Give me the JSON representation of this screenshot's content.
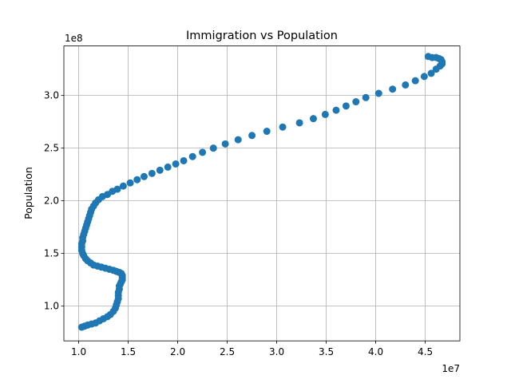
{
  "chart_data": {
    "type": "scatter",
    "title": "Immigration vs Population",
    "xlabel": "",
    "ylabel": "Population",
    "x_offset_label": "1e7",
    "y_offset_label": "1e8",
    "xlim": [
      0.85,
      4.85
    ],
    "ylim": [
      0.67,
      3.47
    ],
    "x_ticks": [
      1.0,
      1.5,
      2.0,
      2.5,
      3.0,
      3.5,
      4.0,
      4.5
    ],
    "x_tick_labels": [
      "1.0",
      "1.5",
      "2.0",
      "2.5",
      "3.0",
      "3.5",
      "4.0",
      "4.5"
    ],
    "y_ticks": [
      1.0,
      1.5,
      2.0,
      2.5,
      3.0
    ],
    "y_tick_labels": [
      "1.0",
      "1.5",
      "2.0",
      "2.5",
      "3.0"
    ],
    "grid": true,
    "color": "#1f77b4",
    "series": [
      {
        "x": [
          1.03,
          1.06,
          1.09,
          1.13,
          1.17,
          1.21,
          1.25,
          1.29,
          1.32,
          1.35,
          1.37,
          1.38,
          1.39,
          1.4,
          1.4,
          1.4,
          1.41,
          1.41,
          1.42,
          1.43,
          1.44,
          1.44,
          1.44,
          1.43,
          1.41,
          1.38,
          1.35,
          1.31,
          1.27,
          1.23,
          1.19,
          1.15,
          1.12,
          1.09,
          1.07,
          1.05,
          1.04,
          1.03,
          1.03,
          1.03,
          1.04,
          1.04,
          1.05,
          1.06,
          1.07,
          1.08,
          1.09,
          1.1,
          1.11,
          1.12,
          1.13,
          1.15,
          1.17,
          1.2,
          1.24,
          1.29,
          1.34,
          1.39,
          1.45,
          1.52,
          1.59,
          1.66,
          1.74,
          1.82,
          1.9,
          1.98,
          2.06,
          2.15,
          2.25,
          2.36,
          2.48,
          2.61,
          2.75,
          2.9,
          3.06,
          3.23,
          3.37,
          3.49,
          3.6,
          3.7,
          3.8,
          3.9,
          4.03,
          4.17,
          4.3,
          4.4,
          4.49,
          4.56,
          4.61,
          4.65,
          4.67,
          4.67,
          4.66,
          4.64,
          4.61,
          4.57,
          4.53
        ],
        "y": [
          0.8,
          0.81,
          0.82,
          0.83,
          0.84,
          0.86,
          0.88,
          0.9,
          0.92,
          0.95,
          0.98,
          1.01,
          1.04,
          1.07,
          1.1,
          1.13,
          1.16,
          1.19,
          1.21,
          1.23,
          1.25,
          1.27,
          1.29,
          1.31,
          1.32,
          1.33,
          1.34,
          1.35,
          1.36,
          1.37,
          1.38,
          1.39,
          1.41,
          1.43,
          1.45,
          1.48,
          1.5,
          1.53,
          1.56,
          1.59,
          1.62,
          1.65,
          1.68,
          1.71,
          1.74,
          1.77,
          1.8,
          1.83,
          1.86,
          1.89,
          1.92,
          1.95,
          1.98,
          2.01,
          2.04,
          2.06,
          2.09,
          2.11,
          2.14,
          2.17,
          2.2,
          2.23,
          2.26,
          2.29,
          2.32,
          2.35,
          2.38,
          2.42,
          2.46,
          2.5,
          2.54,
          2.58,
          2.62,
          2.66,
          2.7,
          2.74,
          2.78,
          2.82,
          2.86,
          2.9,
          2.94,
          2.98,
          3.02,
          3.06,
          3.1,
          3.14,
          3.18,
          3.21,
          3.25,
          3.28,
          3.3,
          3.32,
          3.34,
          3.35,
          3.36,
          3.36,
          3.37
        ]
      }
    ]
  }
}
